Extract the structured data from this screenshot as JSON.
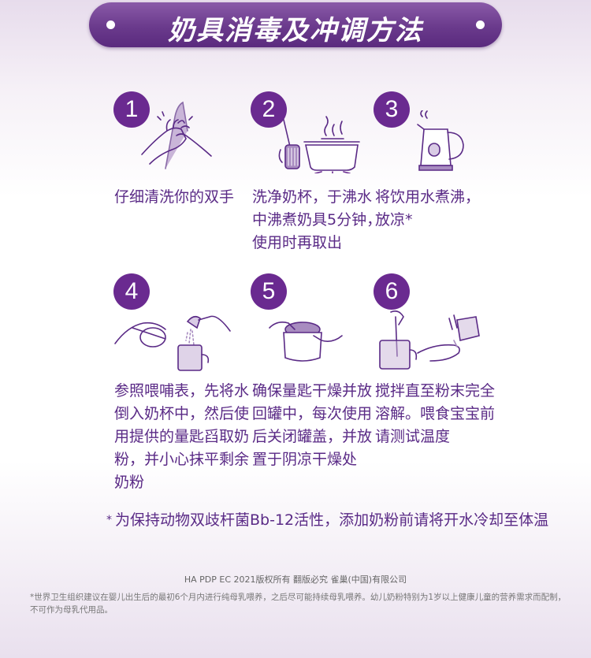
{
  "title": "奶具消毒及冲调方法",
  "steps": [
    {
      "num": "1",
      "text": "仔细清洗你的双手",
      "icon": "hand-washing-icon"
    },
    {
      "num": "2",
      "text": "洗净奶杯，于沸水\n中沸煮奶具5分钟，\n使用时再取出",
      "icon": "sterilize-pot-icon"
    },
    {
      "num": "3",
      "text": "将饮用水煮沸，\n放凉*",
      "icon": "kettle-icon"
    },
    {
      "num": "4",
      "text": "参照喂哺表，先将水\n倒入奶杯中，然后使\n用提供的量匙舀取奶\n粉，并小心抹平剩余\n奶粉",
      "icon": "measure-powder-icon"
    },
    {
      "num": "5",
      "text": "确保量匙干燥并放\n回罐中，每次使用\n后关闭罐盖，并放\n置于阴凉干燥处",
      "icon": "close-can-icon"
    },
    {
      "num": "6",
      "text": "搅拌直至粉末完全\n溶解。喂食宝宝前\n请测试温度",
      "icon": "stir-test-icon"
    }
  ],
  "note": {
    "star": "*",
    "text": "为保持动物双歧杆菌Bb-12活性，添加奶粉前请将开水冷却至体温"
  },
  "copyright": "HA PDP EC 2021版权所有 翻版必究 雀巢(中国)有限公司",
  "footnote": "*世界卫生组织建议在婴儿出生后的最初6个月内进行纯母乳喂养，之后尽可能持续母乳喂养。幼儿奶粉特别为1岁以上健康儿童的营养需求而配制，不可作为母乳代用品。",
  "colors": {
    "primary": "#6a2a90",
    "text": "#5a2a86"
  }
}
